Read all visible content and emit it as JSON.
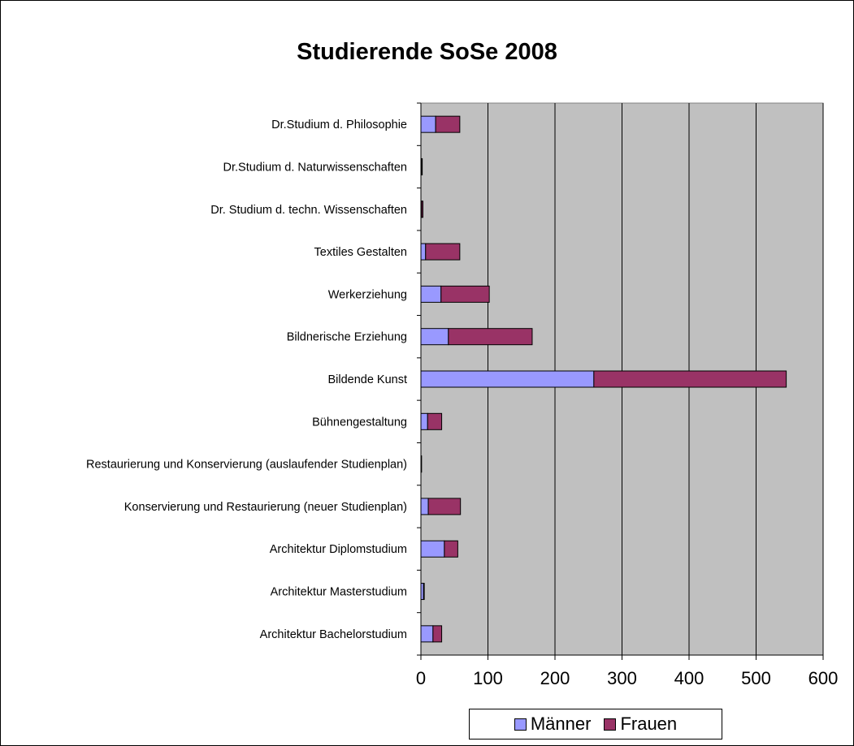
{
  "chart_data": {
    "type": "bar",
    "orientation": "horizontal",
    "stacked": true,
    "title": "Studierende SoSe 2008",
    "categories": [
      "Dr.Studium d. Philosophie",
      "Dr.Studium d. Naturwissenschaften",
      "Dr. Studium d. techn. Wissenschaften",
      "Textiles Gestalten",
      "Werkerziehung",
      "Bildnerische Erziehung",
      "Bildende Kunst",
      "Bühnengestaltung",
      "Restaurierung und Konservierung (auslaufender Studienplan)",
      "Konservierung und Restaurierung (neuer Studienplan)",
      "Architektur Diplomstudium",
      "Architektur Masterstudium",
      "Architektur Bachelorstudium"
    ],
    "series": [
      {
        "name": "Männer",
        "color": "#9999ff",
        "values": [
          22,
          1,
          1,
          7,
          30,
          41,
          258,
          10,
          0,
          11,
          35,
          4,
          18
        ]
      },
      {
        "name": "Frauen",
        "color": "#993366",
        "values": [
          36,
          1,
          2,
          51,
          72,
          125,
          287,
          21,
          1,
          48,
          20,
          1,
          13
        ]
      }
    ],
    "xlim": [
      0,
      600
    ],
    "xticks": [
      0,
      100,
      200,
      300,
      400,
      500,
      600
    ],
    "grid": true,
    "plot_background": "#c0c0c0",
    "legend_position": "bottom"
  }
}
